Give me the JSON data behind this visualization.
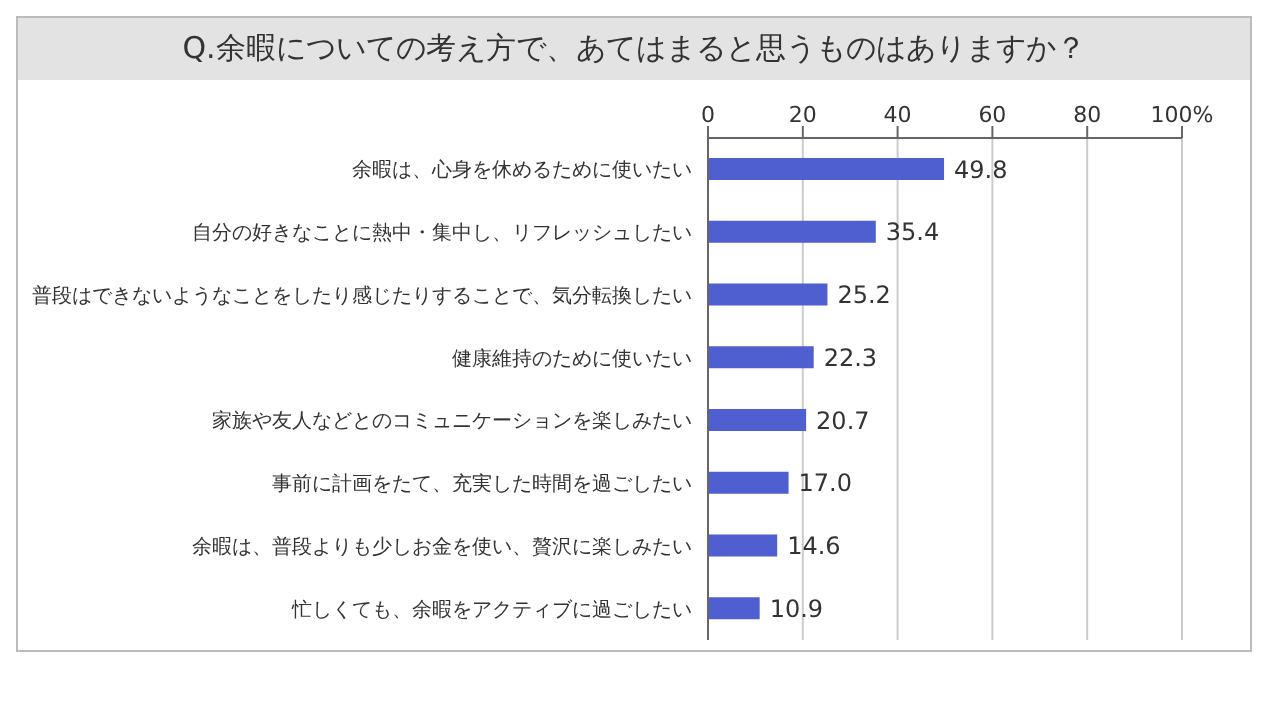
{
  "chart_data": {
    "type": "bar",
    "orientation": "horizontal",
    "title": "Q.余暇についての考え方で、あてはまると思うものはありますか？",
    "categories": [
      "余暇は、心身を休めるために使いたい",
      "自分の好きなことに熱中・集中し、リフレッシュしたい",
      "普段はできないようなことをしたり感じたりすることで、気分転換したい",
      "健康維持のために使いたい",
      "家族や友人などとのコミュニケーションを楽しみたい",
      "事前に計画をたて、充実した時間を過ごしたい",
      "余暇は、普段よりも少しお金を使い、贅沢に楽しみたい",
      "忙しくても、余暇をアクティブに過ごしたい"
    ],
    "values": [
      49.8,
      35.4,
      25.2,
      22.3,
      20.7,
      17.0,
      14.6,
      10.9
    ],
    "color": "#4f5fcf",
    "xlim": [
      0,
      100
    ],
    "xticks": [
      0,
      20,
      40,
      60,
      80,
      {
        "value": 100,
        "label": "100%"
      }
    ],
    "value_labels": [
      "49.8",
      "35.4",
      "25.2",
      "22.3",
      "20.7",
      "17.0",
      "14.6",
      "10.9"
    ],
    "grid": "x"
  }
}
